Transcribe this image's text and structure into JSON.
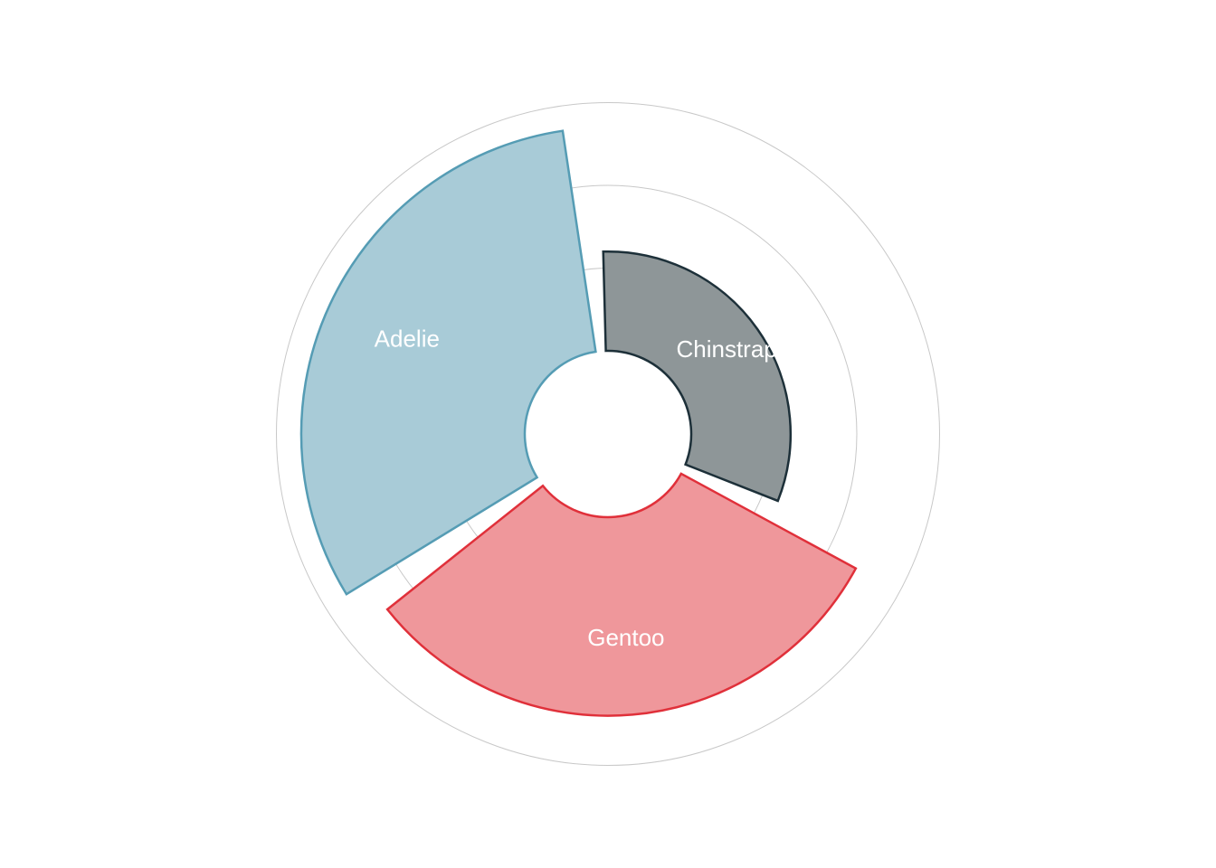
{
  "chart_data": {
    "type": "radial-bar",
    "title": "",
    "categories": [
      "Adelie",
      "Chinstrap",
      "Gentoo"
    ],
    "values": [
      3.7,
      2.2,
      3.4
    ],
    "radial_ticks": [
      2,
      3,
      4
    ],
    "rlim": [
      1,
      4
    ],
    "grid": true,
    "colors": {
      "Adelie": {
        "fill": "#a8cbd7",
        "stroke": "#559cb4"
      },
      "Chinstrap": {
        "fill": "#8e9698",
        "stroke": "#1d3039"
      },
      "Gentoo": {
        "fill": "#ef979b",
        "stroke": "#e0303a"
      }
    }
  }
}
